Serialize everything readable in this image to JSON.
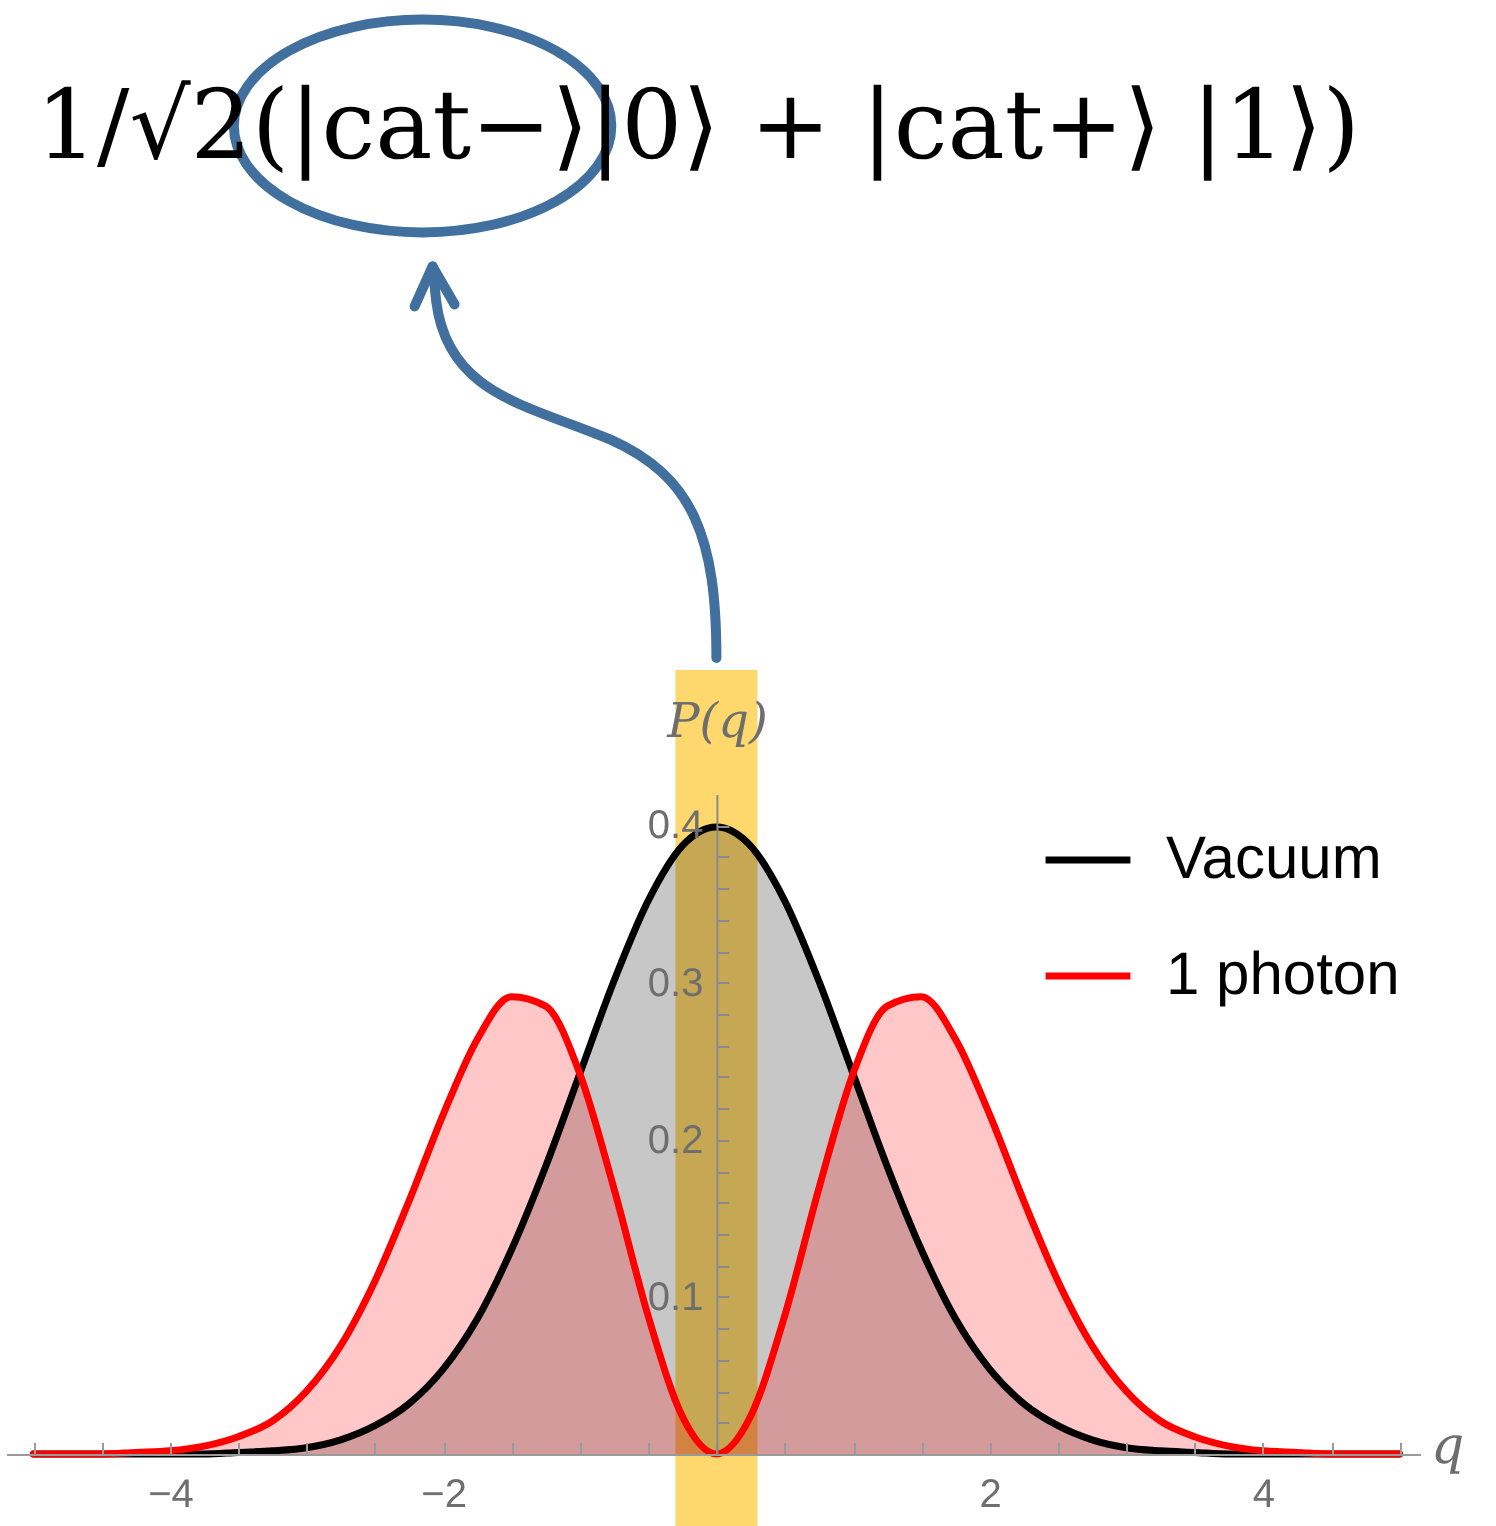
{
  "chart_data": {
    "type": "area",
    "title": "1/√2(|cat−⟩|0⟩ + |cat+⟩ |1⟩)",
    "xlabel": "q",
    "ylabel": "P(q)",
    "x": [
      -5,
      -4.75,
      -4.5,
      -4.25,
      -4,
      -3.75,
      -3.5,
      -3.25,
      -3,
      -2.75,
      -2.5,
      -2.25,
      -2,
      -1.75,
      -1.5,
      -1.25,
      -1,
      -0.75,
      -0.5,
      -0.25,
      0,
      0.25,
      0.5,
      0.75,
      1,
      1.25,
      1.5,
      1.75,
      2,
      2.25,
      2.5,
      2.75,
      3,
      3.25,
      3.5,
      3.75,
      4,
      4.25,
      4.5,
      4.75,
      5
    ],
    "series": [
      {
        "name": "Vacuum",
        "color": "#000000",
        "values": [
          0,
          0,
          0,
          0,
          0,
          0,
          0.001,
          0.002,
          0.004,
          0.009,
          0.018,
          0.032,
          0.054,
          0.086,
          0.13,
          0.183,
          0.242,
          0.301,
          0.352,
          0.387,
          0.399,
          0.387,
          0.352,
          0.301,
          0.242,
          0.183,
          0.13,
          0.086,
          0.054,
          0.032,
          0.018,
          0.009,
          0.004,
          0.002,
          0.001,
          0,
          0,
          0,
          0,
          0,
          0
        ]
      },
      {
        "name": "1 photon",
        "color": "#ff0000",
        "values": [
          0,
          0,
          0,
          0.001,
          0.002,
          0.005,
          0.011,
          0.021,
          0.04,
          0.069,
          0.11,
          0.161,
          0.216,
          0.264,
          0.291,
          0.285,
          0.242,
          0.169,
          0.088,
          0.024,
          0,
          0.024,
          0.088,
          0.169,
          0.242,
          0.285,
          0.291,
          0.264,
          0.216,
          0.161,
          0.11,
          0.069,
          0.04,
          0.021,
          0.011,
          0.005,
          0.002,
          0.001,
          0,
          0,
          0
        ]
      }
    ],
    "xlim": [
      -5.2,
      5.15
    ],
    "ylim": [
      0,
      0.42
    ],
    "xticks": [
      {
        "value": -5,
        "label": null
      },
      {
        "value": -4.5,
        "label": null
      },
      -4,
      {
        "value": -3.5,
        "label": null
      },
      {
        "value": -3,
        "label": null
      },
      {
        "value": -2.5,
        "label": null
      },
      -2,
      {
        "value": -1.5,
        "label": null
      },
      {
        "value": -1,
        "label": null
      },
      {
        "value": -0.5,
        "label": null
      },
      {
        "value": 0,
        "label": null
      },
      {
        "value": 0.5,
        "label": null
      },
      {
        "value": 1,
        "label": null
      },
      {
        "value": 1.5,
        "label": null
      },
      2,
      {
        "value": 2.5,
        "label": null
      },
      {
        "value": 3,
        "label": null
      },
      {
        "value": 3.5,
        "label": null
      },
      4,
      {
        "value": 4.5,
        "label": null
      },
      {
        "value": 5,
        "label": null
      }
    ],
    "yticks": [
      {
        "value": 0.02,
        "label": null
      },
      {
        "value": 0.04,
        "label": null
      },
      {
        "value": 0.06,
        "label": null
      },
      {
        "value": 0.08,
        "label": null
      },
      0.1,
      {
        "value": 0.12,
        "label": null
      },
      {
        "value": 0.14,
        "label": null
      },
      {
        "value": 0.16,
        "label": null
      },
      {
        "value": 0.18,
        "label": null
      },
      0.2,
      {
        "value": 0.22,
        "label": null
      },
      {
        "value": 0.24,
        "label": null
      },
      {
        "value": 0.26,
        "label": null
      },
      {
        "value": 0.28,
        "label": null
      },
      0.3,
      {
        "value": 0.32,
        "label": null
      },
      {
        "value": 0.34,
        "label": null
      },
      {
        "value": 0.36,
        "label": null
      },
      {
        "value": 0.38,
        "label": null
      },
      0.4
    ],
    "legend": "top right",
    "bands": [
      {
        "axis": "x",
        "from": -0.3,
        "to": 0.3,
        "color": "#fed86c"
      }
    ]
  }
}
